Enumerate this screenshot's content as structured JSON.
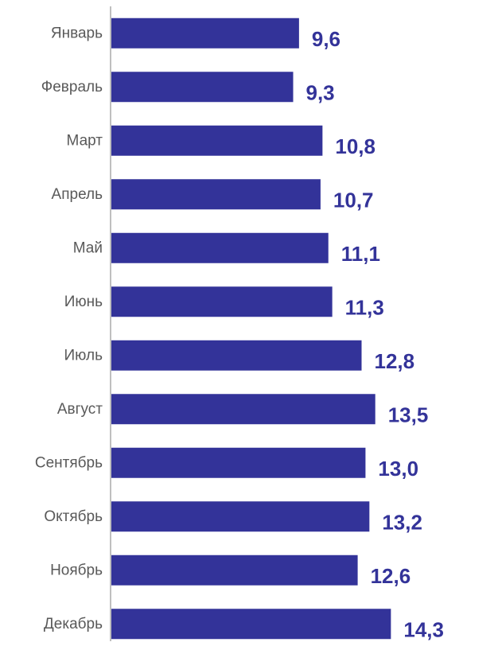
{
  "chart_data": {
    "type": "bar",
    "orientation": "horizontal",
    "categories": [
      "Январь",
      "Февраль",
      "Март",
      "Апрель",
      "Май",
      "Июнь",
      "Июль",
      "Август",
      "Сентябрь",
      "Октябрь",
      "Ноябрь",
      "Декабрь"
    ],
    "values": [
      9.6,
      9.3,
      10.8,
      10.7,
      11.1,
      11.3,
      12.8,
      13.5,
      13.0,
      13.2,
      12.6,
      14.3
    ],
    "value_labels": [
      "9,6",
      "9,3",
      "10,8",
      "10,7",
      "11,1",
      "11,3",
      "12,8",
      "13,5",
      "13,0",
      "13,2",
      "12,6",
      "14,3"
    ],
    "title": "",
    "xlabel": "",
    "ylabel": "",
    "xlim": [
      0,
      17.5
    ],
    "grid": false,
    "legend": "none",
    "bar_color": "#333399",
    "label_color": "#333399",
    "category_color": "#595959",
    "axis_color": "#bfbfbf"
  }
}
